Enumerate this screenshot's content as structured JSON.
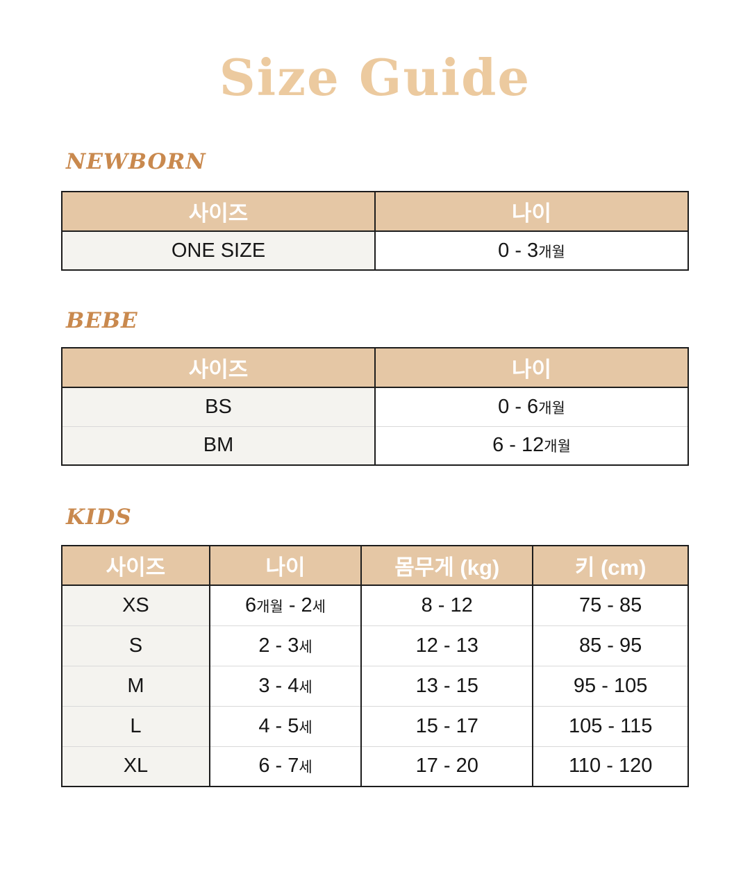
{
  "page": {
    "title": "Size Guide"
  },
  "colors": {
    "title": "#ecca9f",
    "section_heading": "#c9894e",
    "table_header_bg": "#e5c7a5",
    "table_header_text": "#ffffff",
    "first_col_bg": "#f4f3ef",
    "cell_bg": "#ffffff",
    "border_dark": "#1c1c1c",
    "row_divider": "#d9d9d9",
    "body_text": "#161616"
  },
  "sections": [
    {
      "id": "newborn",
      "heading": "NEWBORN",
      "table": {
        "columns": [
          "사이즈",
          "나이"
        ],
        "col_widths": [
          "50%",
          "50%"
        ],
        "rows": [
          [
            [
              {
                "text": "ONE SIZE"
              }
            ],
            [
              {
                "text": "0 - 3"
              },
              {
                "text": "개월",
                "small": true
              }
            ]
          ]
        ]
      }
    },
    {
      "id": "bebe",
      "heading": "BEBE",
      "table": {
        "columns": [
          "사이즈",
          "나이"
        ],
        "col_widths": [
          "50%",
          "50%"
        ],
        "rows": [
          [
            [
              {
                "text": "BS"
              }
            ],
            [
              {
                "text": "0 - 6"
              },
              {
                "text": "개월",
                "small": true
              }
            ]
          ],
          [
            [
              {
                "text": "BM"
              }
            ],
            [
              {
                "text": "6 - 12"
              },
              {
                "text": "개월",
                "small": true
              }
            ]
          ]
        ]
      }
    },
    {
      "id": "kids",
      "heading": "KIDS",
      "table": {
        "columns": [
          "사이즈",
          "나이",
          "몸무게 (kg)",
          "키 (cm)"
        ],
        "col_widths": [
          "23.6%",
          "24.2%",
          "27.4%",
          "24.8%"
        ],
        "rows": [
          [
            [
              {
                "text": "XS"
              }
            ],
            [
              {
                "text": "6"
              },
              {
                "text": "개월",
                "small": true
              },
              {
                "text": " - 2"
              },
              {
                "text": "세",
                "small": true
              }
            ],
            [
              {
                "text": "8 - 12"
              }
            ],
            [
              {
                "text": "75 - 85"
              }
            ]
          ],
          [
            [
              {
                "text": "S"
              }
            ],
            [
              {
                "text": "2 - 3"
              },
              {
                "text": "세",
                "small": true
              }
            ],
            [
              {
                "text": "12 - 13"
              }
            ],
            [
              {
                "text": "85 - 95"
              }
            ]
          ],
          [
            [
              {
                "text": "M"
              }
            ],
            [
              {
                "text": "3 - 4"
              },
              {
                "text": "세",
                "small": true
              }
            ],
            [
              {
                "text": "13 - 15"
              }
            ],
            [
              {
                "text": "95 - 105"
              }
            ]
          ],
          [
            [
              {
                "text": "L"
              }
            ],
            [
              {
                "text": "4 - 5"
              },
              {
                "text": "세",
                "small": true
              }
            ],
            [
              {
                "text": "15 - 17"
              }
            ],
            [
              {
                "text": "105 - 115"
              }
            ]
          ],
          [
            [
              {
                "text": "XL"
              }
            ],
            [
              {
                "text": "6 - 7"
              },
              {
                "text": "세",
                "small": true
              }
            ],
            [
              {
                "text": "17 - 20"
              }
            ],
            [
              {
                "text": "110 - 120"
              }
            ]
          ]
        ]
      }
    }
  ]
}
